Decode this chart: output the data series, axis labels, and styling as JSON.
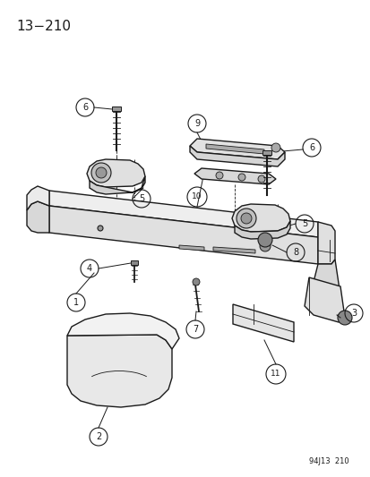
{
  "title": "13−210",
  "footer": "94J13  210",
  "bg": "#ffffff",
  "lc": "#1a1a1a",
  "fc_light": "#f5f5f5",
  "fc_mid": "#e8e8e8",
  "fc_dark": "#d0d0d0"
}
